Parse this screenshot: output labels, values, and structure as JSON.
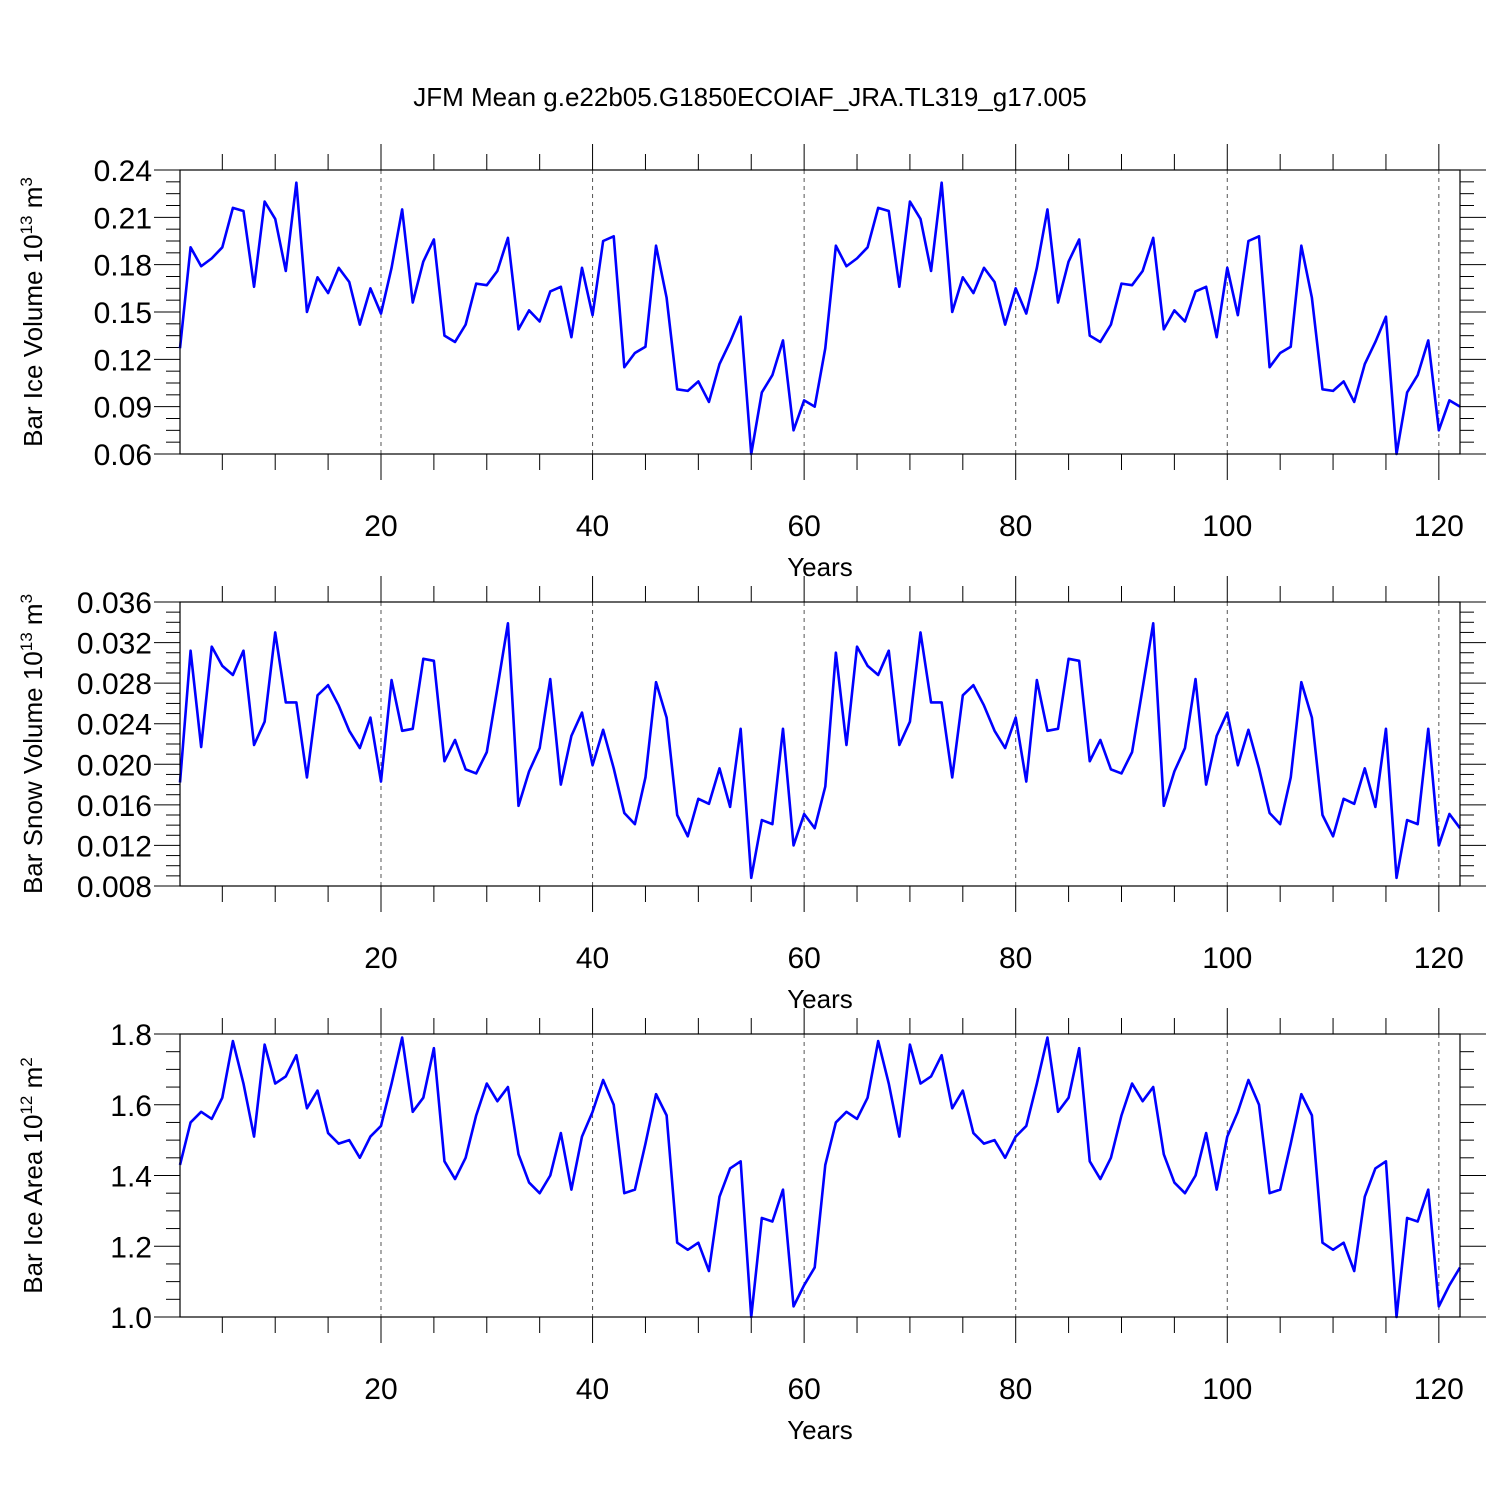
{
  "title": "JFM Mean g.e22b05.G1850ECOIAF_JRA.TL319_g17.005",
  "line_color": "#0000ff",
  "chart_data": [
    {
      "type": "line",
      "xlabel": "Years",
      "ylabel": "Bar Ice Volume 10",
      "ylabel_exp": "13",
      "ylabel_unit": " m",
      "ylabel_unit_exp": "3",
      "xlim": [
        1,
        122
      ],
      "ylim": [
        0.06,
        0.24
      ],
      "xticks": [
        20,
        40,
        60,
        80,
        100,
        120
      ],
      "yticks": [
        "0.06",
        "0.09",
        "0.12",
        "0.15",
        "0.18",
        "0.21",
        "0.24"
      ],
      "grid": "dashed vertical lines at major x ticks",
      "x_start": 1,
      "values": [
        0.127,
        0.191,
        0.179,
        0.184,
        0.191,
        0.216,
        0.214,
        0.166,
        0.22,
        0.209,
        0.176,
        0.232,
        0.15,
        0.172,
        0.162,
        0.178,
        0.169,
        0.142,
        0.165,
        0.149,
        0.178,
        0.215,
        0.156,
        0.182,
        0.196,
        0.135,
        0.131,
        0.142,
        0.168,
        0.167,
        0.176,
        0.197,
        0.139,
        0.151,
        0.144,
        0.163,
        0.166,
        0.134,
        0.178,
        0.148,
        0.195,
        0.198,
        0.115,
        0.124,
        0.128,
        0.192,
        0.159,
        0.101,
        0.1,
        0.106,
        0.093,
        0.117,
        0.131,
        0.147,
        0.06,
        0.099,
        0.11,
        0.132,
        0.075,
        0.094,
        0.09,
        0.127,
        0.192,
        0.179,
        0.184,
        0.191,
        0.216,
        0.214,
        0.166,
        0.22,
        0.209,
        0.176,
        0.232,
        0.15,
        0.172,
        0.162,
        0.178,
        0.169,
        0.142,
        0.165,
        0.149,
        0.178,
        0.215,
        0.156,
        0.182,
        0.196,
        0.135,
        0.131,
        0.142,
        0.168,
        0.167,
        0.176,
        0.197,
        0.139,
        0.151,
        0.144,
        0.163,
        0.166,
        0.134,
        0.178,
        0.148,
        0.195,
        0.198,
        0.115,
        0.124,
        0.128,
        0.192,
        0.159,
        0.101,
        0.1,
        0.106,
        0.093,
        0.117,
        0.131,
        0.147,
        0.06,
        0.099,
        0.11,
        0.132,
        0.075,
        0.094,
        0.09
      ]
    },
    {
      "type": "line",
      "xlabel": "Years",
      "ylabel": "Bar Snow Volume 10",
      "ylabel_exp": "13",
      "ylabel_unit": " m",
      "ylabel_unit_exp": "3",
      "xlim": [
        1,
        122
      ],
      "ylim": [
        0.008,
        0.036
      ],
      "xticks": [
        20,
        40,
        60,
        80,
        100,
        120
      ],
      "yticks": [
        "0.008",
        "0.012",
        "0.016",
        "0.020",
        "0.024",
        "0.028",
        "0.032",
        "0.036"
      ],
      "grid": "dashed vertical lines at major x ticks",
      "x_start": 1,
      "values": [
        0.0182,
        0.0312,
        0.0217,
        0.0316,
        0.0297,
        0.0288,
        0.0312,
        0.0219,
        0.0242,
        0.033,
        0.0261,
        0.0261,
        0.0187,
        0.0268,
        0.0278,
        0.0258,
        0.0233,
        0.0216,
        0.0246,
        0.0183,
        0.0283,
        0.0233,
        0.0235,
        0.0304,
        0.0302,
        0.0203,
        0.0224,
        0.0195,
        0.0191,
        0.0212,
        0.0275,
        0.0339,
        0.0159,
        0.0193,
        0.0216,
        0.0284,
        0.018,
        0.0228,
        0.0251,
        0.0199,
        0.0234,
        0.0196,
        0.0152,
        0.0141,
        0.0187,
        0.0281,
        0.0246,
        0.015,
        0.0129,
        0.0166,
        0.0161,
        0.0196,
        0.0158,
        0.0235,
        0.0088,
        0.0145,
        0.0141,
        0.0235,
        0.012,
        0.0151,
        0.0137,
        0.0178,
        0.031,
        0.0219,
        0.0316,
        0.0297,
        0.0288,
        0.0312,
        0.0219,
        0.0242,
        0.033,
        0.0261,
        0.0261,
        0.0187,
        0.0268,
        0.0278,
        0.0258,
        0.0233,
        0.0216,
        0.0246,
        0.0183,
        0.0283,
        0.0233,
        0.0235,
        0.0304,
        0.0302,
        0.0203,
        0.0224,
        0.0195,
        0.0191,
        0.0212,
        0.0275,
        0.0339,
        0.0159,
        0.0193,
        0.0216,
        0.0284,
        0.018,
        0.0228,
        0.0251,
        0.0199,
        0.0234,
        0.0196,
        0.0152,
        0.0141,
        0.0187,
        0.0281,
        0.0246,
        0.015,
        0.0129,
        0.0166,
        0.0161,
        0.0196,
        0.0158,
        0.0235,
        0.0088,
        0.0145,
        0.0141,
        0.0235,
        0.012,
        0.0151,
        0.0137
      ]
    },
    {
      "type": "line",
      "xlabel": "Years",
      "ylabel": "Bar Ice Area 10",
      "ylabel_exp": "12",
      "ylabel_unit": " m",
      "ylabel_unit_exp": "2",
      "xlim": [
        1,
        122
      ],
      "ylim": [
        1.0,
        1.8
      ],
      "xticks": [
        20,
        40,
        60,
        80,
        100,
        120
      ],
      "yticks": [
        "1.0",
        "1.2",
        "1.4",
        "1.6",
        "1.8"
      ],
      "grid": "dashed vertical lines at major x ticks",
      "x_start": 1,
      "values": [
        1.43,
        1.55,
        1.58,
        1.56,
        1.62,
        1.78,
        1.66,
        1.51,
        1.77,
        1.66,
        1.68,
        1.74,
        1.59,
        1.64,
        1.52,
        1.49,
        1.5,
        1.45,
        1.51,
        1.54,
        1.66,
        1.79,
        1.58,
        1.62,
        1.76,
        1.44,
        1.39,
        1.45,
        1.57,
        1.66,
        1.61,
        1.65,
        1.46,
        1.38,
        1.35,
        1.4,
        1.52,
        1.36,
        1.51,
        1.58,
        1.67,
        1.6,
        1.35,
        1.36,
        1.49,
        1.63,
        1.57,
        1.21,
        1.19,
        1.21,
        1.13,
        1.34,
        1.42,
        1.44,
        1.0,
        1.28,
        1.27,
        1.36,
        1.03,
        1.09,
        1.14,
        1.43,
        1.55,
        1.58,
        1.56,
        1.62,
        1.78,
        1.66,
        1.51,
        1.77,
        1.66,
        1.68,
        1.74,
        1.59,
        1.64,
        1.52,
        1.49,
        1.5,
        1.45,
        1.51,
        1.54,
        1.66,
        1.79,
        1.58,
        1.62,
        1.76,
        1.44,
        1.39,
        1.45,
        1.57,
        1.66,
        1.61,
        1.65,
        1.46,
        1.38,
        1.35,
        1.4,
        1.52,
        1.36,
        1.51,
        1.58,
        1.67,
        1.6,
        1.35,
        1.36,
        1.49,
        1.63,
        1.57,
        1.21,
        1.19,
        1.21,
        1.13,
        1.34,
        1.42,
        1.44,
        1.0,
        1.28,
        1.27,
        1.36,
        1.03,
        1.09,
        1.14
      ]
    }
  ]
}
